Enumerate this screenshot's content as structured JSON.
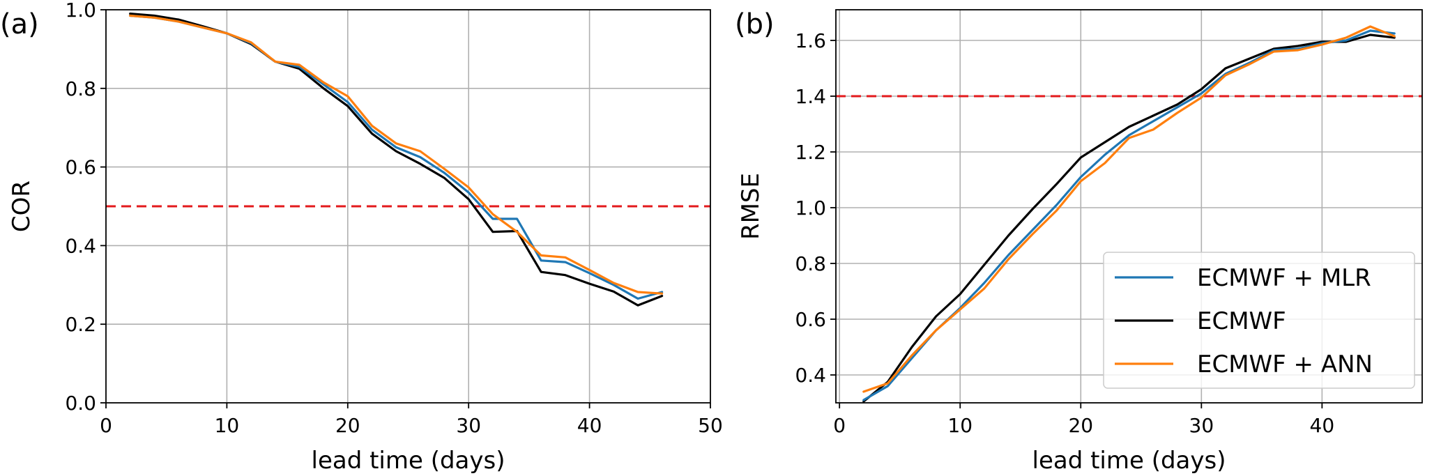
{
  "chart_data": [
    {
      "panel_label": "(a)",
      "type": "line",
      "xlabel": "lead time (days)",
      "ylabel": "COR",
      "xlim": [
        0,
        50
      ],
      "ylim": [
        0.0,
        1.0
      ],
      "xticks": [
        0,
        10,
        20,
        30,
        40,
        50
      ],
      "yticks": [
        0.0,
        0.2,
        0.4,
        0.6,
        0.8,
        1.0
      ],
      "xtick_labels": [
        "0",
        "10",
        "20",
        "30",
        "40",
        "50"
      ],
      "ytick_labels": [
        "0.0",
        "0.2",
        "0.4",
        "0.6",
        "0.8",
        "1.0"
      ],
      "grid": true,
      "reference_line": {
        "y": 0.5,
        "color": "#e31a1c",
        "style": "dashed"
      },
      "x": [
        2,
        4,
        6,
        8,
        10,
        12,
        14,
        16,
        18,
        20,
        22,
        24,
        26,
        28,
        30,
        32,
        34,
        36,
        38,
        40,
        42,
        44,
        46
      ],
      "series": [
        {
          "name": "ECMWF + MLR",
          "color": "#1f77b4",
          "values": [
            0.985,
            0.98,
            0.97,
            0.955,
            0.94,
            0.915,
            0.868,
            0.855,
            0.81,
            0.765,
            0.695,
            0.65,
            0.625,
            0.585,
            0.535,
            0.468,
            0.468,
            0.362,
            0.358,
            0.33,
            0.3,
            0.265,
            0.282
          ]
        },
        {
          "name": "ECMWF",
          "color": "#000000",
          "values": [
            0.99,
            0.985,
            0.975,
            0.958,
            0.94,
            0.913,
            0.868,
            0.85,
            0.8,
            0.755,
            0.685,
            0.64,
            0.608,
            0.572,
            0.518,
            0.435,
            0.437,
            0.333,
            0.325,
            0.303,
            0.283,
            0.248,
            0.272
          ]
        },
        {
          "name": "ECMWF + ANN",
          "color": "#ff7f0e",
          "values": [
            0.985,
            0.98,
            0.97,
            0.955,
            0.94,
            0.917,
            0.868,
            0.86,
            0.815,
            0.78,
            0.705,
            0.66,
            0.64,
            0.595,
            0.548,
            0.48,
            0.435,
            0.375,
            0.37,
            0.338,
            0.305,
            0.282,
            0.278
          ]
        }
      ]
    },
    {
      "panel_label": "(b)",
      "type": "line",
      "xlabel": "lead time (days)",
      "ylabel": "RMSE",
      "xlim": [
        -0.3,
        48.3
      ],
      "ylim": [
        0.3,
        1.71
      ],
      "xticks": [
        0,
        10,
        20,
        30,
        40
      ],
      "yticks": [
        0.4,
        0.6,
        0.8,
        1.0,
        1.2,
        1.4,
        1.6
      ],
      "xtick_labels": [
        "0",
        "10",
        "20",
        "30",
        "40"
      ],
      "ytick_labels": [
        "0.4",
        "0.6",
        "0.8",
        "1.0",
        "1.2",
        "1.4",
        "1.6"
      ],
      "grid": true,
      "reference_line": {
        "y": 1.4,
        "color": "#e31a1c",
        "style": "dashed"
      },
      "legend_position": "lower-right",
      "x": [
        2,
        4,
        6,
        8,
        10,
        12,
        14,
        16,
        18,
        20,
        22,
        24,
        26,
        28,
        30,
        32,
        34,
        36,
        38,
        40,
        42,
        44,
        46
      ],
      "series": [
        {
          "name": "ECMWF + MLR",
          "color": "#1f77b4",
          "values": [
            0.31,
            0.36,
            0.46,
            0.56,
            0.64,
            0.73,
            0.83,
            0.92,
            1.01,
            1.11,
            1.19,
            1.26,
            1.31,
            1.36,
            1.41,
            1.48,
            1.52,
            1.565,
            1.57,
            1.59,
            1.6,
            1.635,
            1.625
          ]
        },
        {
          "name": "ECMWF",
          "color": "#000000",
          "values": [
            0.305,
            0.375,
            0.5,
            0.61,
            0.69,
            0.795,
            0.9,
            0.995,
            1.085,
            1.18,
            1.235,
            1.29,
            1.33,
            1.37,
            1.425,
            1.5,
            1.535,
            1.57,
            1.58,
            1.595,
            1.595,
            1.62,
            1.61
          ]
        },
        {
          "name": "ECMWF + ANN",
          "color": "#ff7f0e",
          "values": [
            0.34,
            0.37,
            0.47,
            0.56,
            0.635,
            0.71,
            0.815,
            0.905,
            0.99,
            1.095,
            1.16,
            1.25,
            1.28,
            1.34,
            1.395,
            1.475,
            1.515,
            1.56,
            1.565,
            1.585,
            1.61,
            1.65,
            1.615
          ]
        }
      ]
    }
  ]
}
